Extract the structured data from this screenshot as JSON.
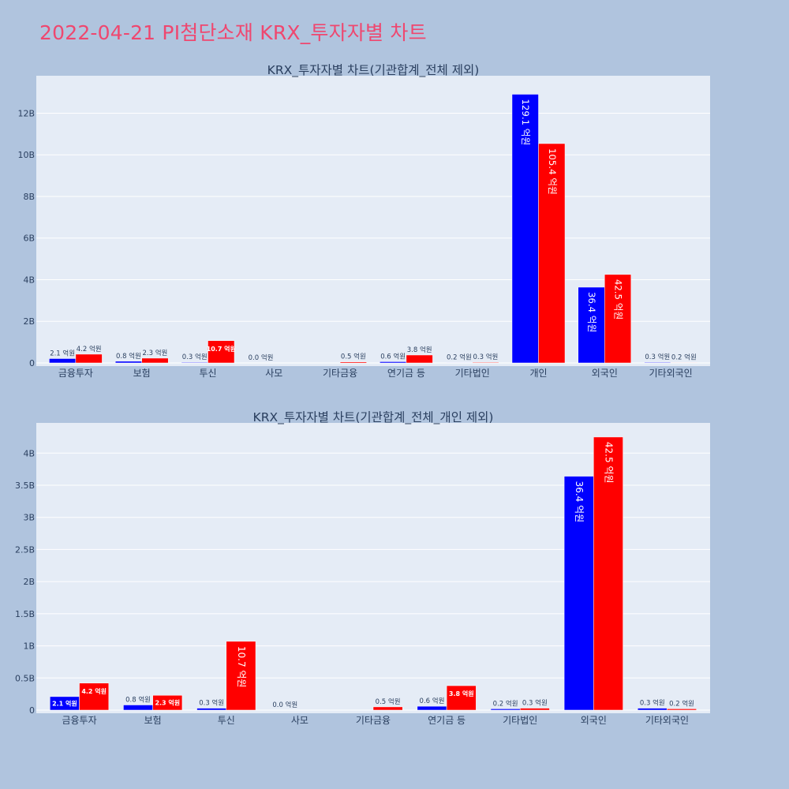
{
  "page_title": "2022-04-21 PI첨단소재 KRX_투자자별 차트",
  "colors": {
    "background": "#b0c4de",
    "plot_bg": "#e5ecf6",
    "title": "#ef476f",
    "sell": "#0000ff",
    "buy": "#ff0000"
  },
  "chart_data": [
    {
      "type": "bar",
      "title": "KRX_투자자별 차트(기관합계_전체 제외)",
      "categories": [
        "금융투자",
        "보험",
        "투신",
        "사모",
        "기타금융",
        "연기금 등",
        "기타법인",
        "개인",
        "외국인",
        "기타외국인"
      ],
      "ylim": [
        0,
        13.8
      ],
      "y_ticks": [
        0,
        2,
        4,
        6,
        8,
        10,
        12
      ],
      "y_tick_labels": [
        "0",
        "2B",
        "4B",
        "6B",
        "8B",
        "10B",
        "12B"
      ],
      "y_unit": "B",
      "grid": true,
      "series": [
        {
          "color": "#0000ff",
          "values": [
            0.21,
            0.08,
            0.03,
            0.0,
            0.0,
            0.06,
            0.02,
            12.91,
            3.64,
            0.03
          ],
          "labels": [
            "2.1 억원",
            "0.8 억원",
            "0.3 억원",
            "0.0 억원",
            "",
            "0.6 억원",
            "0.2 억원",
            "129.1 억원",
            "36.4 억원",
            "0.3 억원"
          ]
        },
        {
          "color": "#ff0000",
          "values": [
            0.42,
            0.23,
            1.07,
            0.0,
            0.05,
            0.38,
            0.03,
            10.54,
            4.25,
            0.02
          ],
          "labels": [
            "4.2 억원",
            "2.3 억원",
            "10.7 억원",
            "",
            "0.5 억원",
            "3.8 억원",
            "0.3 억원",
            "105.4 억원",
            "42.5 억원",
            "0.2 억원"
          ]
        }
      ]
    },
    {
      "type": "bar",
      "title": "KRX_투자자별 차트(기관합계_전체_개인 제외)",
      "categories": [
        "금융투자",
        "보험",
        "투신",
        "사모",
        "기타금융",
        "연기금 등",
        "기타법인",
        "외국인",
        "기타외국인"
      ],
      "ylim": [
        0,
        4.47
      ],
      "y_ticks": [
        0,
        0.5,
        1,
        1.5,
        2,
        2.5,
        3,
        3.5,
        4
      ],
      "y_tick_labels": [
        "0",
        "0.5B",
        "1B",
        "1.5B",
        "2B",
        "2.5B",
        "3B",
        "3.5B",
        "4B"
      ],
      "y_unit": "B",
      "grid": true,
      "series": [
        {
          "color": "#0000ff",
          "values": [
            0.21,
            0.08,
            0.03,
            0.0,
            0.0,
            0.06,
            0.02,
            3.64,
            0.03
          ],
          "labels": [
            "2.1 억원",
            "0.8 억원",
            "0.3 억원",
            "0.0 억원",
            "",
            "0.6 억원",
            "0.2 억원",
            "36.4 억원",
            "0.3 억원"
          ]
        },
        {
          "color": "#ff0000",
          "values": [
            0.42,
            0.23,
            1.07,
            0.0,
            0.05,
            0.38,
            0.03,
            4.25,
            0.02
          ],
          "labels": [
            "4.2 억원",
            "2.3 억원",
            "10.7 억원",
            "",
            "0.5 억원",
            "3.8 억원",
            "0.3 억원",
            "42.5 억원",
            "0.2 억원"
          ]
        }
      ]
    }
  ]
}
